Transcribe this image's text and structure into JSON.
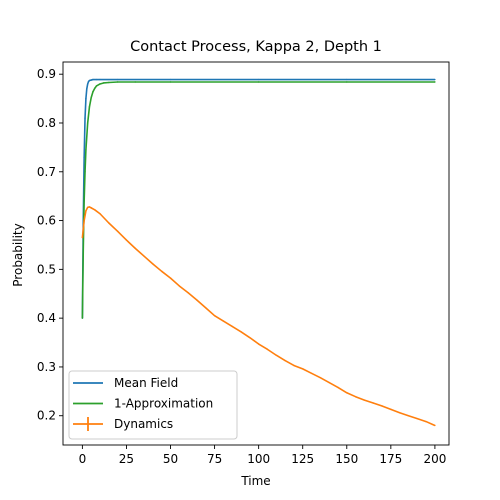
{
  "chart_data": {
    "type": "line",
    "title": "Contact Process, Kappa 2, Depth 1",
    "xlabel": "Time",
    "ylabel": "Probability",
    "xlim": [
      -11,
      208
    ],
    "ylim": [
      0.14,
      0.925
    ],
    "x_ticks": [
      0,
      25,
      50,
      75,
      100,
      125,
      150,
      175,
      200
    ],
    "y_ticks": [
      0.2,
      0.3,
      0.4,
      0.5,
      0.6,
      0.7,
      0.8,
      0.9
    ],
    "grid": false,
    "legend": "lower-left",
    "series": [
      {
        "name": "Mean Field",
        "color": "#1f77b4",
        "x": [
          0,
          0.5,
          1,
          1.5,
          2,
          2.5,
          3,
          3.5,
          4,
          5,
          6,
          8,
          10,
          20,
          50,
          100,
          150,
          200
        ],
        "y": [
          0.4,
          0.6,
          0.73,
          0.81,
          0.85,
          0.87,
          0.88,
          0.885,
          0.887,
          0.888,
          0.889,
          0.889,
          0.889,
          0.889,
          0.889,
          0.889,
          0.889,
          0.889
        ]
      },
      {
        "name": "1-Approximation",
        "color": "#2ca02c",
        "x": [
          0,
          0.5,
          1,
          1.5,
          2,
          3,
          4,
          5,
          6,
          7,
          8,
          10,
          12,
          15,
          20,
          30,
          50,
          100,
          150,
          200
        ],
        "y": [
          0.4,
          0.54,
          0.64,
          0.7,
          0.745,
          0.8,
          0.833,
          0.852,
          0.864,
          0.871,
          0.876,
          0.88,
          0.882,
          0.883,
          0.884,
          0.884,
          0.884,
          0.884,
          0.884,
          0.884
        ]
      },
      {
        "name": "Dynamics",
        "color": "#ff7f0e",
        "x": [
          0,
          1,
          2,
          3,
          4,
          5,
          7,
          10,
          15,
          20,
          25,
          30,
          35,
          40,
          45,
          50,
          55,
          60,
          65,
          70,
          75,
          80,
          85,
          90,
          95,
          100,
          105,
          110,
          115,
          120,
          125,
          130,
          135,
          140,
          145,
          150,
          155,
          160,
          165,
          170,
          175,
          180,
          185,
          190,
          195,
          200
        ],
        "y": [
          0.565,
          0.6,
          0.62,
          0.627,
          0.628,
          0.626,
          0.622,
          0.614,
          0.595,
          0.578,
          0.56,
          0.543,
          0.527,
          0.511,
          0.496,
          0.482,
          0.466,
          0.452,
          0.437,
          0.421,
          0.405,
          0.394,
          0.383,
          0.372,
          0.36,
          0.347,
          0.336,
          0.324,
          0.313,
          0.303,
          0.296,
          0.287,
          0.278,
          0.268,
          0.258,
          0.247,
          0.239,
          0.232,
          0.226,
          0.22,
          0.213,
          0.206,
          0.2,
          0.194,
          0.188,
          0.18
        ]
      }
    ]
  }
}
